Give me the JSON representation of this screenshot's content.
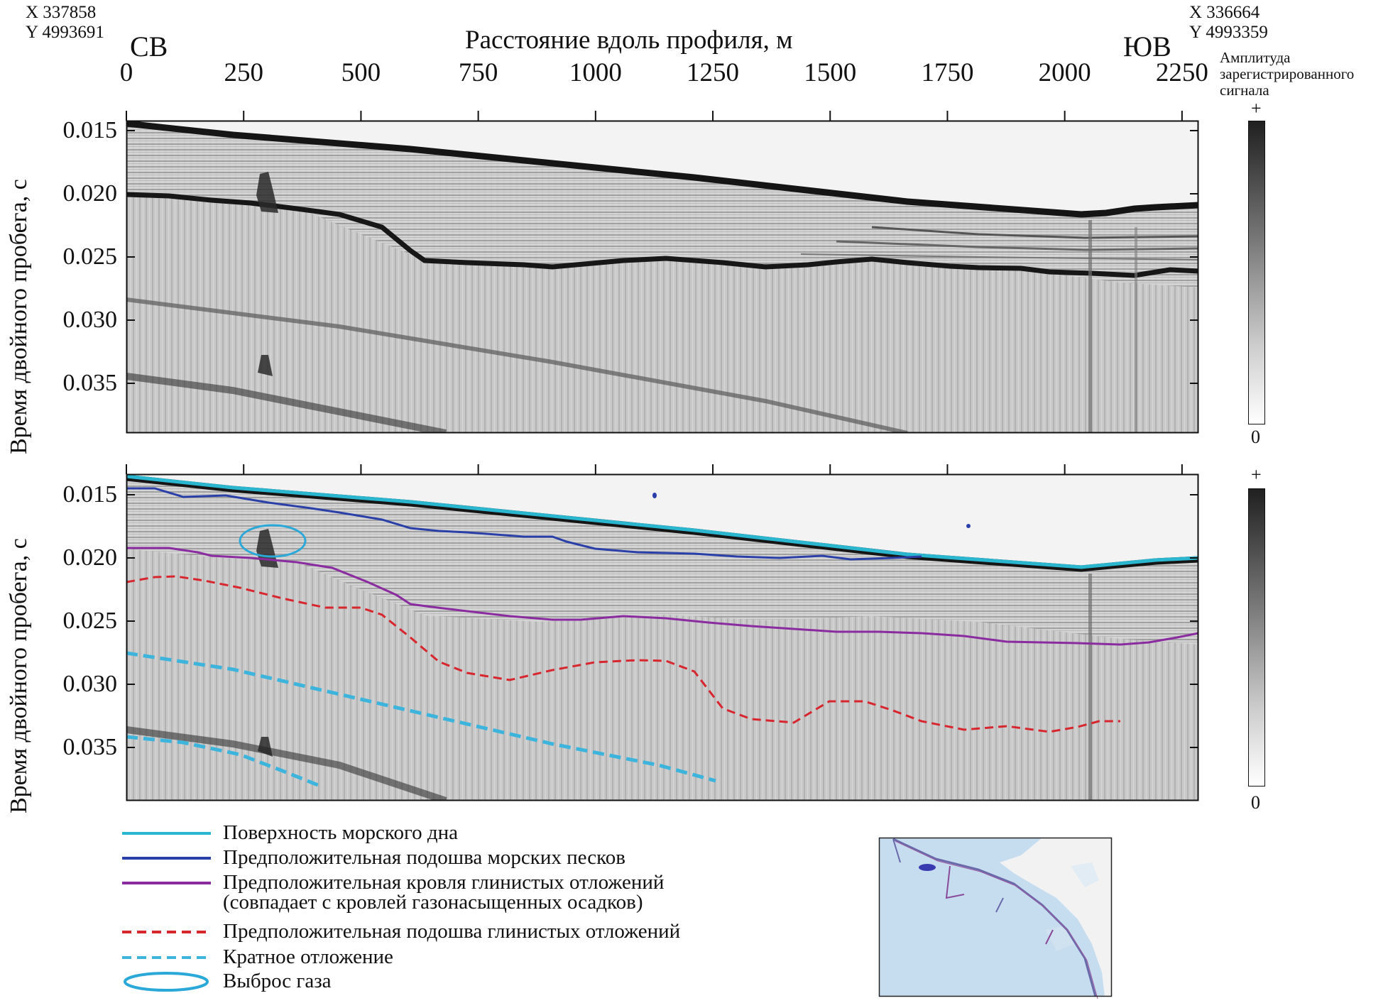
{
  "header": {
    "start_coord_x": "X 337858",
    "start_coord_y": "Y 4993691",
    "end_coord_x": "X 336664",
    "end_coord_y": "Y 4993359",
    "start_direction": "СВ",
    "end_direction": "ЮВ",
    "x_axis_title": "Расстояние вдоль профиля, м",
    "x_ticks": [
      "0",
      "250",
      "500",
      "750",
      "1000",
      "1250",
      "1500",
      "1750",
      "2000",
      "2250"
    ]
  },
  "panels": {
    "y_axis_title": "Время двойного пробега, с",
    "y_ticks": [
      "0.015",
      "0.020",
      "0.025",
      "0.030",
      "0.035"
    ]
  },
  "colorbar": {
    "title_line1": "Амплитуда",
    "title_line2": "зарегистрированного",
    "title_line3": "сигнала",
    "max_label": "+",
    "min_label": "0"
  },
  "legend": {
    "items": [
      {
        "label": "Поверхность морского дна",
        "color": "#2bb6d0",
        "style": "solid"
      },
      {
        "label": "Предположительная подошва морских песков",
        "color": "#2a3fa8",
        "style": "solid"
      },
      {
        "label": "Предположительная кровля глинистых отложений",
        "label2": "(совпадает с кровлей газонасыщенных осадков)",
        "color": "#8a2ca0",
        "style": "solid"
      },
      {
        "label": "Предположительная подошва глинистых отложений",
        "color": "#d8262f",
        "style": "dashed"
      },
      {
        "label": "Кратное отложение",
        "color": "#3cb4dc",
        "style": "dashed"
      },
      {
        "label": "Выброс газа",
        "color": "#2aa8d8",
        "style": "ellipse"
      }
    ]
  },
  "colors": {
    "seafloor": "#2bb6d0",
    "sand_base": "#2a3fa8",
    "clay_top": "#8a2ca0",
    "clay_base": "#d8262f",
    "multiple": "#3cb4dc",
    "gas": "#2aa8d8"
  }
}
